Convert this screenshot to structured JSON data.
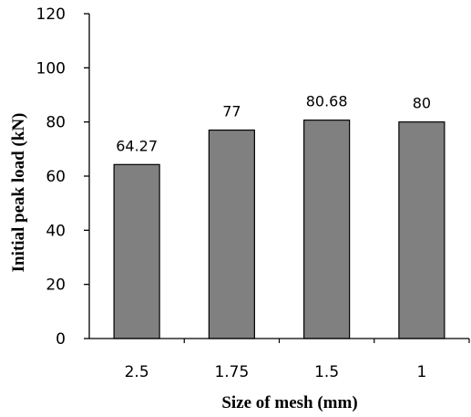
{
  "chart_data": {
    "type": "bar",
    "categories": [
      "2.5",
      "1.75",
      "1.5",
      "1"
    ],
    "values": [
      64.27,
      77,
      80.68,
      80
    ],
    "data_labels": [
      "64.27",
      "77",
      "80.68",
      "80"
    ],
    "xlabel": "Size of mesh (mm)",
    "ylabel": "Initial peak load (kN)",
    "ylim": [
      0,
      120
    ],
    "yticks": [
      0,
      20,
      40,
      60,
      80,
      100,
      120
    ],
    "grid": false,
    "legend": "none",
    "bar_color": "#808080",
    "bar_edge_color": "#000000"
  }
}
